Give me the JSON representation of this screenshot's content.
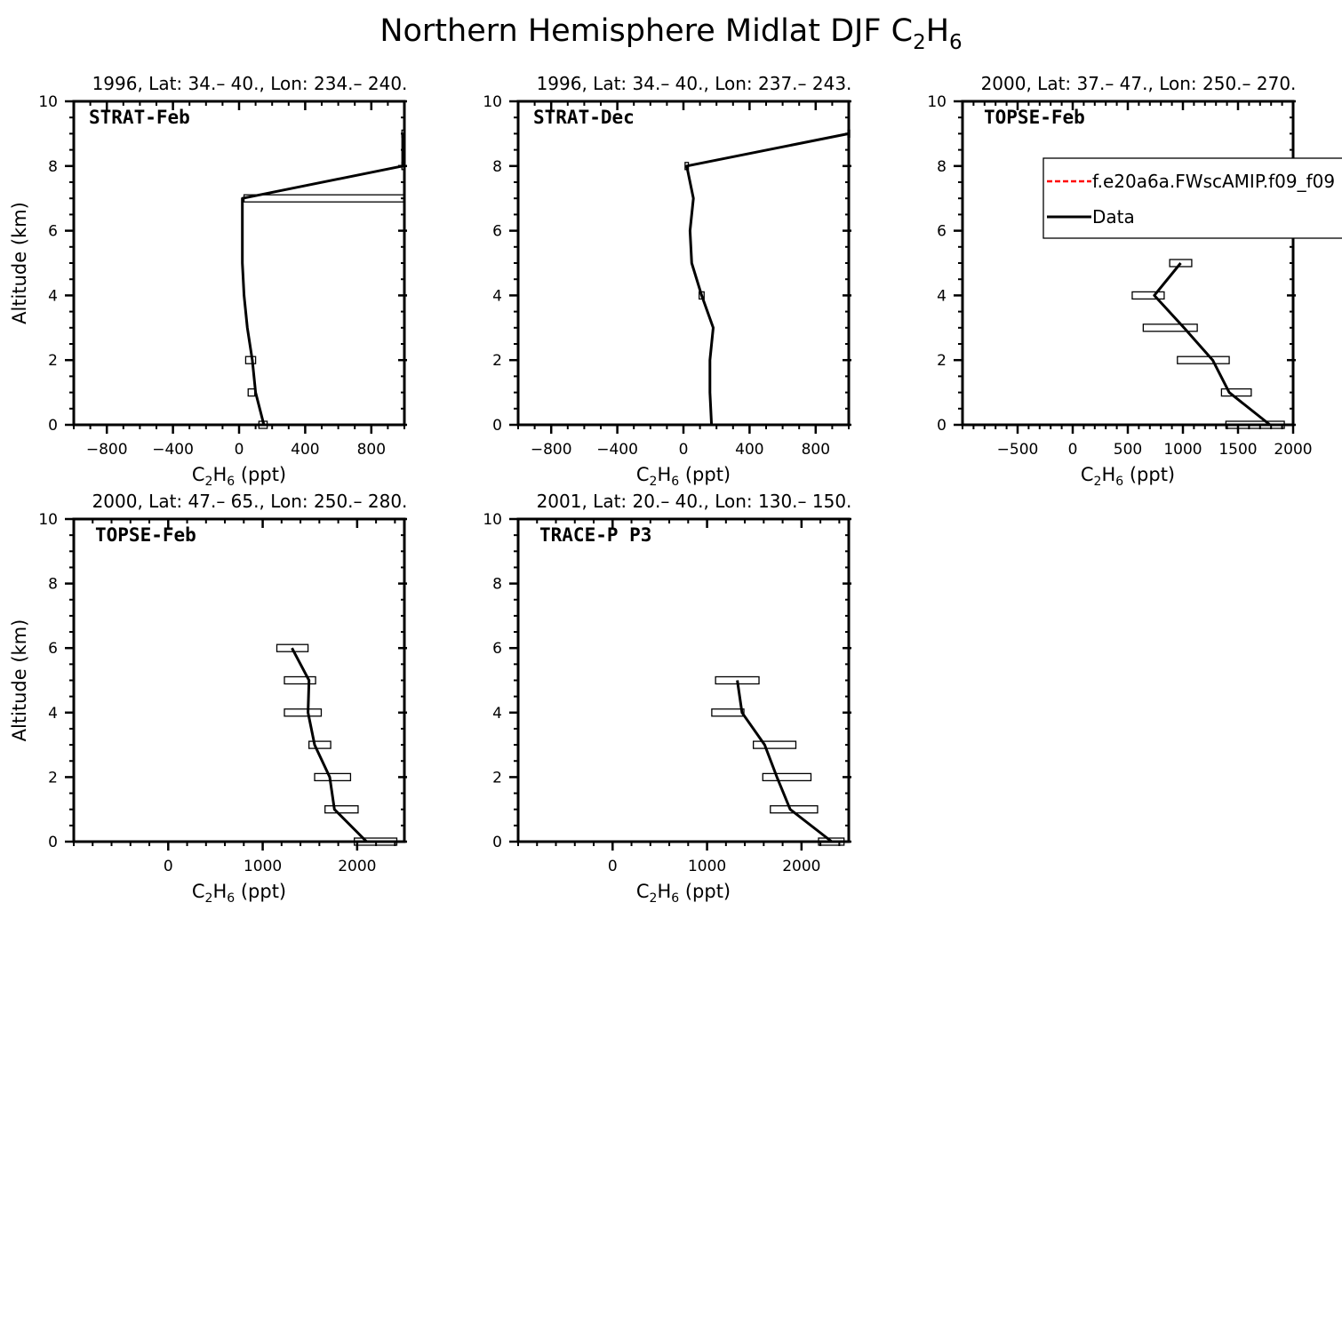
{
  "figure": {
    "title_main": "Northern Hemisphere Midlat DJF C",
    "title_sub1": "2",
    "title_mid": "H",
    "title_sub2": "6"
  },
  "legend": {
    "model": "f.e20a6a.FWscAMIP.f09_f09",
    "data": "Data",
    "model_color": "#ff0000",
    "data_color": "#000000"
  },
  "axis_text": {
    "ylabel": "Altitude (km)",
    "xlabel_c": "C",
    "xlabel_sub1": "2",
    "xlabel_h": "H",
    "xlabel_sub2": "6",
    "xlabel_unit": " (ppt)"
  },
  "chart_data": [
    {
      "type": "line",
      "campaign": "STRAT-Feb",
      "header": "1996, Lat: 34.– 40., Lon: 234.– 240.",
      "xlim": [
        -1000,
        1000
      ],
      "ylim": [
        0,
        10
      ],
      "xticks": [
        -800,
        -400,
        0,
        400,
        800
      ],
      "xtick_labels": [
        "−800",
        "−400",
        "0",
        "400",
        "800"
      ],
      "yticks": [
        0,
        2,
        4,
        6,
        8,
        10
      ],
      "ytick_labels": [
        "0",
        "2",
        "4",
        "6",
        "8",
        "10"
      ],
      "show_ylabel": true,
      "series": [
        {
          "role": "data",
          "x": [
            150,
            100,
            80,
            50,
            30,
            20,
            20,
            20,
            990,
            990
          ],
          "y": [
            0,
            1,
            2,
            3,
            4,
            5,
            6,
            7,
            8,
            9
          ]
        }
      ],
      "boxes": [
        {
          "y": 0,
          "x0": 120,
          "x1": 170
        },
        {
          "y": 1,
          "x0": 55,
          "x1": 95
        },
        {
          "y": 2,
          "x0": 40,
          "x1": 100
        },
        {
          "y": 7,
          "x0": 30,
          "x1": 1000
        },
        {
          "y": 8,
          "x0": 985,
          "x1": 995
        },
        {
          "y": 9,
          "x0": 985,
          "x1": 995
        }
      ]
    },
    {
      "type": "line",
      "campaign": "STRAT-Dec",
      "header": "1996, Lat: 34.– 40., Lon: 237.– 243.",
      "xlim": [
        -1000,
        1000
      ],
      "ylim": [
        0,
        10
      ],
      "xticks": [
        -800,
        -400,
        0,
        400,
        800
      ],
      "xtick_labels": [
        "−800",
        "−400",
        "0",
        "400",
        "800"
      ],
      "yticks": [
        0,
        2,
        4,
        6,
        8,
        10
      ],
      "ytick_labels": [
        "0",
        "2",
        "4",
        "6",
        "8",
        "10"
      ],
      "show_ylabel": false,
      "series": [
        {
          "role": "data",
          "x": [
            170,
            160,
            160,
            180,
            110,
            50,
            40,
            60,
            20,
            1000
          ],
          "y": [
            0,
            1,
            2,
            3,
            4,
            5,
            6,
            7,
            8,
            9
          ]
        }
      ],
      "boxes": [
        {
          "y": 4,
          "x0": 95,
          "x1": 125
        },
        {
          "y": 8,
          "x0": 10,
          "x1": 30
        },
        {
          "y": 9,
          "x0": 995,
          "x1": 1005
        }
      ]
    },
    {
      "type": "line",
      "campaign": "TOPSE-Feb",
      "header": "2000, Lat: 37.– 47., Lon: 250.– 270.",
      "xlim": [
        -1000,
        2000
      ],
      "ylim": [
        0,
        10
      ],
      "xticks": [
        -500,
        0,
        500,
        1000,
        1500,
        2000
      ],
      "xtick_labels": [
        "−500",
        "0",
        "500",
        "1000",
        "1500",
        "2000"
      ],
      "yticks": [
        0,
        2,
        4,
        6,
        8,
        10
      ],
      "ytick_labels": [
        "0",
        "2",
        "4",
        "6",
        "8",
        "10"
      ],
      "show_ylabel": false,
      "show_legend": true,
      "series": [
        {
          "role": "data",
          "x": [
            1790,
            1420,
            1270,
            1010,
            740,
            980
          ],
          "y": [
            0,
            1,
            2,
            3,
            4,
            5
          ]
        }
      ],
      "boxes": [
        {
          "y": 0,
          "x0": 1390,
          "x1": 1920
        },
        {
          "y": 1,
          "x0": 1350,
          "x1": 1620
        },
        {
          "y": 2,
          "x0": 950,
          "x1": 1420
        },
        {
          "y": 3,
          "x0": 640,
          "x1": 1130
        },
        {
          "y": 4,
          "x0": 540,
          "x1": 830
        },
        {
          "y": 5,
          "x0": 880,
          "x1": 1080
        }
      ]
    },
    {
      "type": "line",
      "campaign": "TOPSE-Feb",
      "header": "2000, Lat: 47.– 65., Lon: 250.– 280.",
      "xlim": [
        -1000,
        2500
      ],
      "ylim": [
        0,
        10
      ],
      "xticks": [
        0,
        1000,
        2000
      ],
      "xtick_labels": [
        "0",
        "1000",
        "2000"
      ],
      "yticks": [
        0,
        2,
        4,
        6,
        8,
        10
      ],
      "ytick_labels": [
        "0",
        "2",
        "4",
        "6",
        "8",
        "10"
      ],
      "show_ylabel": true,
      "series": [
        {
          "role": "data",
          "x": [
            2100,
            1760,
            1710,
            1550,
            1480,
            1490,
            1310
          ],
          "y": [
            0,
            1,
            2,
            3,
            4,
            5,
            6
          ]
        }
      ],
      "boxes": [
        {
          "y": 0,
          "x0": 1970,
          "x1": 2420
        },
        {
          "y": 1,
          "x0": 1660,
          "x1": 2010
        },
        {
          "y": 2,
          "x0": 1550,
          "x1": 1930
        },
        {
          "y": 3,
          "x0": 1490,
          "x1": 1720
        },
        {
          "y": 4,
          "x0": 1230,
          "x1": 1620
        },
        {
          "y": 5,
          "x0": 1230,
          "x1": 1560
        },
        {
          "y": 6,
          "x0": 1150,
          "x1": 1480
        }
      ]
    },
    {
      "type": "line",
      "campaign": "TRACE-P P3",
      "header": "2001, Lat: 20.– 40., Lon: 130.– 150.",
      "xlim": [
        -1000,
        2500
      ],
      "ylim": [
        0,
        10
      ],
      "xticks": [
        0,
        1000,
        2000
      ],
      "xtick_labels": [
        "0",
        "1000",
        "2000"
      ],
      "yticks": [
        0,
        2,
        4,
        6,
        8,
        10
      ],
      "ytick_labels": [
        "0",
        "2",
        "4",
        "6",
        "8",
        "10"
      ],
      "show_ylabel": false,
      "series": [
        {
          "role": "data",
          "x": [
            2320,
            1880,
            1740,
            1610,
            1370,
            1320
          ],
          "y": [
            0,
            1,
            2,
            3,
            4,
            5
          ]
        }
      ],
      "boxes": [
        {
          "y": 0,
          "x0": 2180,
          "x1": 2450
        },
        {
          "y": 1,
          "x0": 1670,
          "x1": 2170
        },
        {
          "y": 2,
          "x0": 1590,
          "x1": 2100
        },
        {
          "y": 3,
          "x0": 1490,
          "x1": 1940
        },
        {
          "y": 4,
          "x0": 1050,
          "x1": 1390
        },
        {
          "y": 5,
          "x0": 1090,
          "x1": 1550
        }
      ]
    }
  ]
}
